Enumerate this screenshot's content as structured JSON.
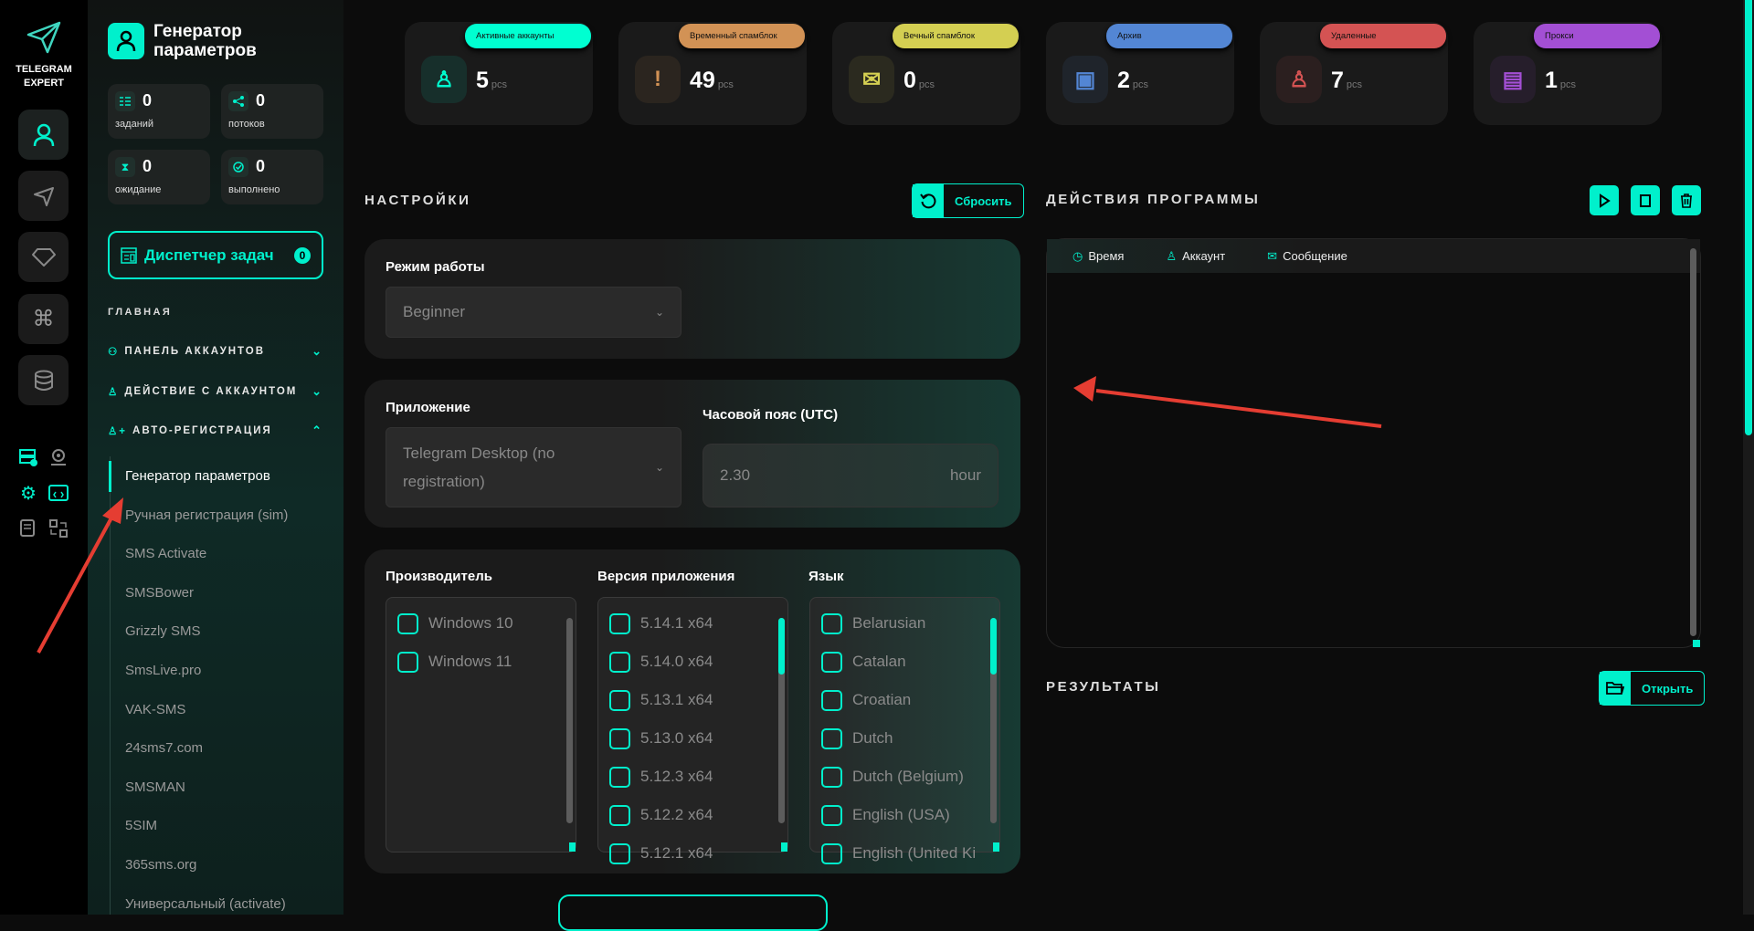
{
  "app": {
    "logo_line1": "TELEGRAM",
    "logo_line2": "EXPERT"
  },
  "colors": {
    "accent": "#00f0cc",
    "active": "#00ffd1",
    "temp_spamblock": "#d29255",
    "perm_spamblock": "#d4cf52",
    "archive": "#5386d4",
    "deleted": "#d45353",
    "proxy": "#a34fd4"
  },
  "rail": {
    "items": [
      "user-icon",
      "send-icon",
      "diamond-icon",
      "command-icon",
      "database-icon"
    ],
    "tools": [
      "server-check-icon",
      "webcam-icon",
      "gear-icon",
      "code-window-icon",
      "checklist-icon",
      "swap-icon"
    ]
  },
  "sidebar": {
    "title_line1": "Генератор",
    "title_line2": "параметров",
    "stats": [
      {
        "value": "0",
        "label": "заданий"
      },
      {
        "value": "0",
        "label": "потоков"
      },
      {
        "value": "0",
        "label": "ожидание"
      },
      {
        "value": "0",
        "label": "выполнено"
      }
    ],
    "dispatcher": {
      "label": "Диспетчер задач",
      "count": "0"
    },
    "section_heading": "ГЛАВНАЯ",
    "sections": [
      {
        "label": "ПАНЕЛЬ АККАУНТОВ",
        "expanded": false
      },
      {
        "label": "ДЕЙСТВИЕ С АККАУНТОМ",
        "expanded": false
      },
      {
        "label": "АВТО-РЕГИСТРАЦИЯ",
        "expanded": true
      }
    ],
    "subitems": [
      "Генератор параметров",
      "Ручная регистрация (sim)",
      "SMS Activate",
      "SMSBower",
      "Grizzly SMS",
      "SmsLive.pro",
      "VAK-SMS",
      "24sms7.com",
      "SMSMAN",
      "5SIM",
      "365sms.org",
      "Универсальный (activate)"
    ],
    "active_subitem": "Генератор параметров"
  },
  "cards": [
    {
      "label": "Активные аккаунты",
      "value": "5",
      "unit": "pcs",
      "color": "#00ffd1"
    },
    {
      "label": "Временный спамблок",
      "value": "49",
      "unit": "pcs",
      "color": "#d29255"
    },
    {
      "label": "Вечный спамблок",
      "value": "0",
      "unit": "pcs",
      "color": "#d4cf52"
    },
    {
      "label": "Архив",
      "value": "2",
      "unit": "pcs",
      "color": "#5386d4"
    },
    {
      "label": "Удаленные",
      "value": "7",
      "unit": "pcs",
      "color": "#d45353"
    },
    {
      "label": "Прокси",
      "value": "1",
      "unit": "pcs",
      "color": "#a34fd4"
    }
  ],
  "settings": {
    "title": "НАСТРОЙКИ",
    "reset_label": "Сбросить",
    "mode_label": "Режим работы",
    "mode_value": "Beginner",
    "app_label": "Приложение",
    "app_value": "Telegram Desktop (no registration)",
    "tz_label": "Часовой пояс (UTC)",
    "tz_value": "2.30",
    "tz_unit": "hour",
    "manufacturer_label": "Производитель",
    "manufacturers": [
      "Windows 10",
      "Windows 11"
    ],
    "version_label": "Версия приложения",
    "versions": [
      "5.14.1 x64",
      "5.14.0 x64",
      "5.13.1 x64",
      "5.13.0 x64",
      "5.12.3 x64",
      "5.12.2 x64",
      "5.12.1 x64"
    ],
    "language_label": "Язык",
    "languages": [
      "Belarusian",
      "Catalan",
      "Croatian",
      "Dutch",
      "Dutch (Belgium)",
      "English (USA)",
      "English (United Ki"
    ]
  },
  "actions": {
    "title": "ДЕЙСТВИЯ ПРОГРАММЫ",
    "columns": [
      "Время",
      "Аккаунт",
      "Сообщение"
    ]
  },
  "results": {
    "title": "РЕЗУЛЬТАТЫ",
    "open_label": "Открыть"
  }
}
